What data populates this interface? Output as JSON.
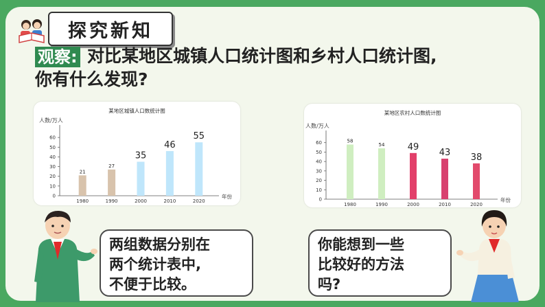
{
  "header": {
    "title": "探究新知",
    "observe_tag": "观察:",
    "question_line1": "对比某地区城镇人口统计图和乡村人口统计图,",
    "question_line2": "你有什么发现?"
  },
  "chart_data": [
    {
      "type": "bar",
      "title": "某地区城镇人口数统计图",
      "ylabel": "人数/万人",
      "xlabel": "年份",
      "categories": [
        "1980",
        "1990",
        "2000",
        "2010",
        "2020"
      ],
      "values": [
        21,
        27,
        35,
        46,
        55
      ],
      "colors": [
        "#d8c3ac",
        "#d8c3ac",
        "#bfe6fb",
        "#bfe6fb",
        "#bfe6fb"
      ],
      "yticks": [
        0,
        10,
        20,
        30,
        40,
        50,
        60
      ],
      "ylim": [
        0,
        70
      ],
      "grid": false
    },
    {
      "type": "bar",
      "title": "某地区农村人口数统计图",
      "ylabel": "人数/万人",
      "xlabel": "年份",
      "categories": [
        "1980",
        "1990",
        "2000",
        "2010",
        "2020"
      ],
      "values": [
        58,
        54,
        49,
        43,
        38
      ],
      "colors": [
        "#cfeec0",
        "#cfeec0",
        "#e2406a",
        "#d8416f",
        "#e24a6c"
      ],
      "yticks": [
        0,
        10,
        20,
        30,
        40,
        50,
        60
      ],
      "ylim": [
        0,
        70
      ],
      "grid": false
    }
  ],
  "bubbles": {
    "left": [
      "两组数据分别在",
      "两个统计表中,",
      "不便于比较。"
    ],
    "right": [
      "你能想到一些",
      "比较好的方法",
      "吗?"
    ]
  }
}
